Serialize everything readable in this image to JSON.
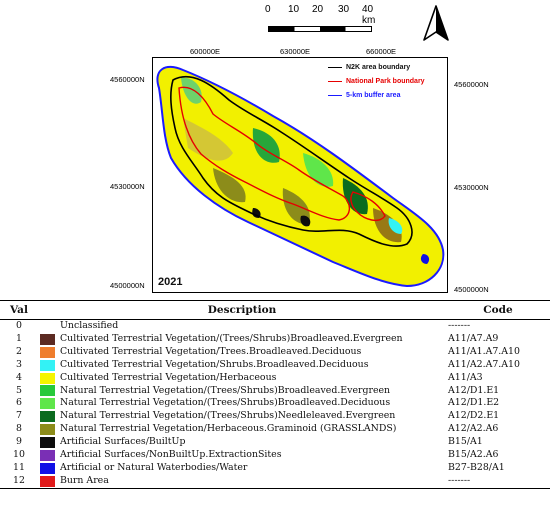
{
  "map": {
    "scale": {
      "ticks": [
        "0",
        "10",
        "20",
        "30",
        "40 km"
      ]
    },
    "north_arrow": "north-arrow-icon",
    "x_coords": [
      "600000E",
      "630000E",
      "660000E"
    ],
    "y_coords": [
      "4560000N",
      "4530000N",
      "4500000N"
    ],
    "overlay_legend": [
      {
        "label": "N2K area boundary",
        "color": "#000000"
      },
      {
        "label": "National Park boundary",
        "color": "#e60000"
      },
      {
        "label": "5-km buffer area",
        "color": "#1a1aff"
      }
    ],
    "year": "2021"
  },
  "table": {
    "headers": {
      "val": "Val",
      "description": "Description",
      "code": "Code"
    },
    "rows": [
      {
        "val": "0",
        "color": "",
        "description": "Unclassified",
        "code": "-------"
      },
      {
        "val": "1",
        "color": "#5c2a22",
        "description": "Cultivated Terrestrial Vegetation/(Trees/Shrubs)Broadleaved.Evergreen",
        "code": "A11/A7.A9"
      },
      {
        "val": "2",
        "color": "#ef7d2d",
        "description": "Cultivated Terrestrial Vegetation/Trees.Broadleaved.Deciduous",
        "code": "A11/A1.A7.A10"
      },
      {
        "val": "3",
        "color": "#33f2f5",
        "description": "Cultivated Terrestrial Vegetation/Shrubs.Broadleaved.Deciduous",
        "code": "A11/A2.A7.A10"
      },
      {
        "val": "4",
        "color": "#f5f500",
        "description": "Cultivated Terrestrial Vegetation/Herbaceous",
        "code": "A11/A3"
      },
      {
        "val": "5",
        "color": "#27c93a",
        "description": "Natural Terrestrial Vegetation/(Trees/Shrubs)Broadleaved.Evergreen",
        "code": "A12/D1.E1"
      },
      {
        "val": "6",
        "color": "#5fe64a",
        "description": "Natural Terrestrial Vegetation/(Trees/Shrubs)Broadleaved.Deciduous",
        "code": "A12/D1.E2"
      },
      {
        "val": "7",
        "color": "#0b6b1f",
        "description": "Natural Terrestrial Vegetation/(Trees/Shrubs)Needleleaved.Evergreen",
        "code": "A12/D2.E1"
      },
      {
        "val": "8",
        "color": "#8c8c1a",
        "description": "Natural Terrestrial Vegetation/Herbaceous.Graminoid (GRASSLANDS)",
        "code": "A12/A2.A6"
      },
      {
        "val": "9",
        "color": "#0d0d0d",
        "description": "Artificial Surfaces/BuiltUp",
        "code": "B15/A1"
      },
      {
        "val": "10",
        "color": "#7a2fb5",
        "description": "Artificial Surfaces/NonBuiltUp.ExtractionSites",
        "code": "B15/A2.A6"
      },
      {
        "val": "11",
        "color": "#1010e6",
        "description": "Artificial or Natural Waterbodies/Water",
        "code": "B27-B28/A1"
      },
      {
        "val": "12",
        "color": "#e11a1a",
        "description": "Burn Area",
        "code": "-------"
      }
    ]
  }
}
